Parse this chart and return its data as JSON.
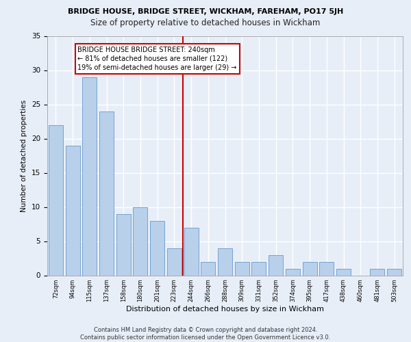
{
  "title1": "BRIDGE HOUSE, BRIDGE STREET, WICKHAM, FAREHAM, PO17 5JH",
  "title2": "Size of property relative to detached houses in Wickham",
  "xlabel": "Distribution of detached houses by size in Wickham",
  "ylabel": "Number of detached properties",
  "categories": [
    "72sqm",
    "94sqm",
    "115sqm",
    "137sqm",
    "158sqm",
    "180sqm",
    "201sqm",
    "223sqm",
    "244sqm",
    "266sqm",
    "288sqm",
    "309sqm",
    "331sqm",
    "352sqm",
    "374sqm",
    "395sqm",
    "417sqm",
    "438sqm",
    "460sqm",
    "481sqm",
    "503sqm"
  ],
  "values": [
    22,
    19,
    29,
    24,
    9,
    10,
    8,
    4,
    7,
    2,
    4,
    2,
    2,
    3,
    1,
    2,
    2,
    1,
    0,
    1,
    1
  ],
  "bar_color": "#b8d0ea",
  "bar_edge_color": "#6699cc",
  "vline_color": "#cc0000",
  "annotation_box_color": "#ffffff",
  "annotation_box_edge": "#cc0000",
  "annotation_text": "BRIDGE HOUSE BRIDGE STREET: 240sqm\n← 81% of detached houses are smaller (122)\n19% of semi-detached houses are larger (29) →",
  "ylim": [
    0,
    35
  ],
  "yticks": [
    0,
    5,
    10,
    15,
    20,
    25,
    30,
    35
  ],
  "footer": "Contains HM Land Registry data © Crown copyright and database right 2024.\nContains public sector information licensed under the Open Government Licence v3.0.",
  "bg_color": "#e8eef8",
  "plot_bg_color": "#e8eef8",
  "grid_color": "#ffffff",
  "title1_fontsize": 8.0,
  "title2_fontsize": 8.5,
  "xlabel_fontsize": 8.0,
  "ylabel_fontsize": 7.5,
  "xtick_fontsize": 6.0,
  "ytick_fontsize": 7.5,
  "footer_fontsize": 6.0,
  "annot_fontsize": 7.0,
  "vline_index": 8
}
